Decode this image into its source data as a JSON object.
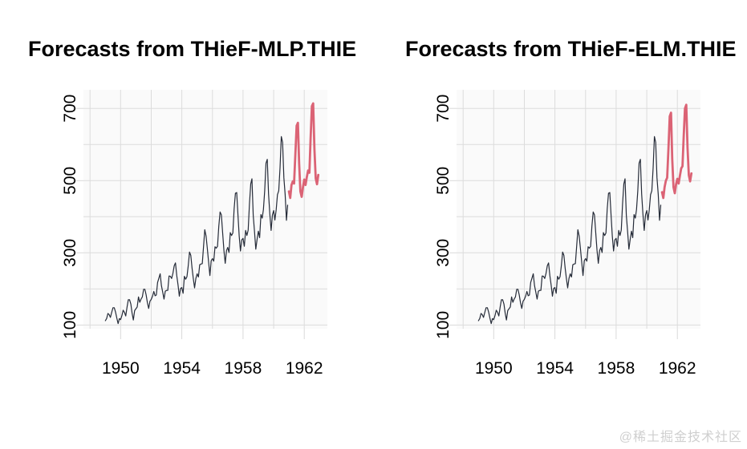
{
  "page": {
    "watermark": "@稀土掘金技术社区"
  },
  "colors": {
    "panel_background": "#fafafa",
    "gridline": "#dcdcdc",
    "tick": "#d9d9d9",
    "observed_line": "#252b38",
    "forecast_line": "#db6375",
    "title_text": "#000000",
    "axis_text": "#000000"
  },
  "chart_data": [
    {
      "type": "line",
      "title": "Forecasts from THieF-MLP.THIE",
      "xlabel": "",
      "ylabel": "",
      "legend": "none",
      "grid": true,
      "xlim": [
        1947.57,
        1963.51
      ],
      "ylim": [
        89.8,
        751.5
      ],
      "x_ticks": [
        1950,
        1954,
        1958,
        1962
      ],
      "y_ticks": [
        100,
        300,
        500,
        700
      ],
      "x_gridlines": [
        1948,
        1950,
        1952,
        1954,
        1956,
        1958,
        1960,
        1962
      ],
      "y_gridlines": [
        100,
        200,
        300,
        400,
        500,
        600,
        700
      ],
      "series": [
        {
          "name": "observed",
          "role": "history",
          "color": "#252b38",
          "width": 1.2,
          "start_year": 1949,
          "period": 12,
          "values": [
            112,
            118,
            132,
            129,
            121,
            135,
            148,
            148,
            136,
            119,
            104,
            118,
            115,
            126,
            141,
            135,
            125,
            149,
            170,
            170,
            158,
            133,
            114,
            140,
            145,
            150,
            178,
            163,
            172,
            178,
            199,
            199,
            184,
            162,
            146,
            166,
            171,
            180,
            193,
            181,
            183,
            218,
            230,
            242,
            209,
            191,
            172,
            194,
            196,
            196,
            236,
            235,
            229,
            243,
            264,
            272,
            237,
            211,
            180,
            201,
            204,
            188,
            235,
            227,
            234,
            264,
            302,
            293,
            259,
            229,
            203,
            229,
            242,
            233,
            267,
            269,
            270,
            315,
            364,
            347,
            312,
            274,
            237,
            278,
            284,
            277,
            317,
            313,
            318,
            374,
            413,
            405,
            355,
            306,
            271,
            306,
            315,
            301,
            356,
            348,
            355,
            422,
            465,
            467,
            404,
            347,
            305,
            336,
            340,
            318,
            362,
            348,
            363,
            435,
            491,
            505,
            404,
            359,
            310,
            337,
            360,
            342,
            406,
            396,
            420,
            472,
            548,
            559,
            463,
            407,
            362,
            405,
            417,
            391,
            419,
            461,
            472,
            535,
            622,
            606,
            508,
            461,
            390,
            432
          ]
        },
        {
          "name": "forecast",
          "role": "forecast",
          "color": "#db6375",
          "width": 2.8,
          "start_year": 1961,
          "period": 12,
          "values": [
            470,
            452,
            488,
            498,
            492,
            572,
            652,
            660,
            548,
            470,
            455,
            482,
            503,
            488,
            510,
            528,
            522,
            616,
            706,
            714,
            586,
            506,
            490,
            516
          ]
        }
      ]
    },
    {
      "type": "line",
      "title": "Forecasts from THieF-ELM.THIE",
      "xlabel": "",
      "ylabel": "",
      "legend": "none",
      "grid": true,
      "xlim": [
        1947.57,
        1963.51
      ],
      "ylim": [
        89.8,
        751.5
      ],
      "x_ticks": [
        1950,
        1954,
        1958,
        1962
      ],
      "y_ticks": [
        100,
        300,
        500,
        700
      ],
      "x_gridlines": [
        1948,
        1950,
        1952,
        1954,
        1956,
        1958,
        1960,
        1962
      ],
      "y_gridlines": [
        100,
        200,
        300,
        400,
        500,
        600,
        700
      ],
      "series": [
        {
          "name": "observed",
          "role": "history",
          "color": "#252b38",
          "width": 1.2,
          "start_year": 1949,
          "period": 12,
          "values": [
            112,
            118,
            132,
            129,
            121,
            135,
            148,
            148,
            136,
            119,
            104,
            118,
            115,
            126,
            141,
            135,
            125,
            149,
            170,
            170,
            158,
            133,
            114,
            140,
            145,
            150,
            178,
            163,
            172,
            178,
            199,
            199,
            184,
            162,
            146,
            166,
            171,
            180,
            193,
            181,
            183,
            218,
            230,
            242,
            209,
            191,
            172,
            194,
            196,
            196,
            236,
            235,
            229,
            243,
            264,
            272,
            237,
            211,
            180,
            201,
            204,
            188,
            235,
            227,
            234,
            264,
            302,
            293,
            259,
            229,
            203,
            229,
            242,
            233,
            267,
            269,
            270,
            315,
            364,
            347,
            312,
            274,
            237,
            278,
            284,
            277,
            317,
            313,
            318,
            374,
            413,
            405,
            355,
            306,
            271,
            306,
            315,
            301,
            356,
            348,
            355,
            422,
            465,
            467,
            404,
            347,
            305,
            336,
            340,
            318,
            362,
            348,
            363,
            435,
            491,
            505,
            404,
            359,
            310,
            337,
            360,
            342,
            406,
            396,
            420,
            472,
            548,
            559,
            463,
            407,
            362,
            405,
            417,
            391,
            419,
            461,
            472,
            535,
            622,
            606,
            508,
            461,
            390,
            432
          ]
        },
        {
          "name": "forecast",
          "role": "forecast",
          "color": "#db6375",
          "width": 2.8,
          "start_year": 1961,
          "period": 12,
          "values": [
            468,
            452,
            482,
            500,
            508,
            588,
            678,
            688,
            560,
            482,
            465,
            490,
            505,
            492,
            514,
            534,
            540,
            622,
            700,
            710,
            590,
            515,
            498,
            520
          ]
        }
      ]
    }
  ]
}
